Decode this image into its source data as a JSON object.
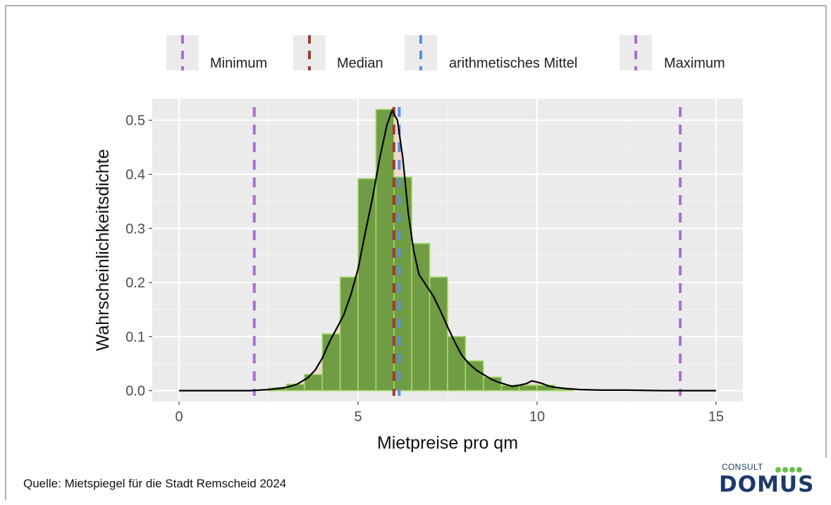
{
  "source_note": "Quelle: Mietspiegel für die Stadt Remscheid 2024",
  "logo": {
    "consult": "CONSULT",
    "domus": "DOMUS"
  },
  "colors": {
    "panel_bg": "#ebebeb",
    "grid": "#ffffff",
    "bar_fill": "#6b9a3e",
    "bar_edge": "#a8d96a",
    "density_fill": "#f2d3c9",
    "density_line": "#000000",
    "minimum": "#a86fd4",
    "median": "#a13a33",
    "mean": "#5b8fe0",
    "maximum": "#a86fd4"
  },
  "chart_data": {
    "type": "histogram-density",
    "xlabel": "Mietpreise pro qm",
    "ylabel": "Wahrscheinlichkeitsdichte",
    "xlim": [
      -0.75,
      15.75
    ],
    "ylim": [
      -0.02,
      0.54
    ],
    "xticks": [
      0,
      5,
      10,
      15
    ],
    "yticks": [
      0.0,
      0.1,
      0.2,
      0.3,
      0.4,
      0.5
    ],
    "ytick_labels": [
      "0.0",
      "0.1",
      "0.2",
      "0.3",
      "0.4",
      "0.5"
    ],
    "grid": true,
    "legend_position": "top",
    "bin_width": 0.5,
    "bins": [
      {
        "x0": 2.5,
        "x1": 3.0,
        "value": 0.005
      },
      {
        "x0": 3.0,
        "x1": 3.5,
        "value": 0.012
      },
      {
        "x0": 3.5,
        "x1": 4.0,
        "value": 0.03
      },
      {
        "x0": 4.0,
        "x1": 4.5,
        "value": 0.105
      },
      {
        "x0": 4.5,
        "x1": 5.0,
        "value": 0.21
      },
      {
        "x0": 5.0,
        "x1": 5.5,
        "value": 0.392
      },
      {
        "x0": 5.5,
        "x1": 6.0,
        "value": 0.52
      },
      {
        "x0": 6.0,
        "x1": 6.5,
        "value": 0.395
      },
      {
        "x0": 6.5,
        "x1": 7.0,
        "value": 0.272
      },
      {
        "x0": 7.0,
        "x1": 7.5,
        "value": 0.21
      },
      {
        "x0": 7.5,
        "x1": 8.0,
        "value": 0.1
      },
      {
        "x0": 8.0,
        "x1": 8.5,
        "value": 0.055
      },
      {
        "x0": 8.5,
        "x1": 9.0,
        "value": 0.025
      },
      {
        "x0": 9.0,
        "x1": 9.5,
        "value": 0.01
      },
      {
        "x0": 9.5,
        "x1": 10.0,
        "value": 0.01
      },
      {
        "x0": 10.0,
        "x1": 10.5,
        "value": 0.01
      },
      {
        "x0": 10.5,
        "x1": 11.0,
        "value": 0.003
      }
    ],
    "density": {
      "x": [
        0,
        2,
        2.5,
        3,
        3.3,
        3.6,
        3.8,
        4.0,
        4.2,
        4.4,
        4.6,
        4.8,
        5.0,
        5.2,
        5.4,
        5.6,
        5.8,
        5.95,
        6.1,
        6.25,
        6.4,
        6.55,
        6.7,
        6.9,
        7.1,
        7.3,
        7.5,
        7.7,
        7.9,
        8.1,
        8.3,
        8.5,
        8.7,
        8.9,
        9.1,
        9.3,
        9.5,
        9.7,
        9.85,
        10.0,
        10.15,
        10.3,
        10.5,
        10.8,
        11.2,
        11.8,
        12.5,
        13.5,
        15
      ],
      "y": [
        0.0,
        0.0,
        0.002,
        0.006,
        0.012,
        0.024,
        0.038,
        0.06,
        0.09,
        0.115,
        0.14,
        0.178,
        0.225,
        0.292,
        0.355,
        0.428,
        0.49,
        0.518,
        0.5,
        0.43,
        0.33,
        0.26,
        0.215,
        0.195,
        0.175,
        0.148,
        0.118,
        0.09,
        0.065,
        0.05,
        0.038,
        0.03,
        0.022,
        0.016,
        0.012,
        0.008,
        0.01,
        0.013,
        0.018,
        0.016,
        0.013,
        0.009,
        0.006,
        0.004,
        0.002,
        0.001,
        0.001,
        0.0,
        0.0
      ]
    },
    "vlines": [
      {
        "name": "Minimum",
        "x": 2.1,
        "color": "#a86fd4"
      },
      {
        "name": "Median",
        "x": 6.0,
        "color": "#a13a33"
      },
      {
        "name": "arithmetisches Mittel",
        "x": 6.15,
        "color": "#5b8fe0"
      },
      {
        "name": "Maximum",
        "x": 14.0,
        "color": "#a86fd4"
      }
    ]
  }
}
